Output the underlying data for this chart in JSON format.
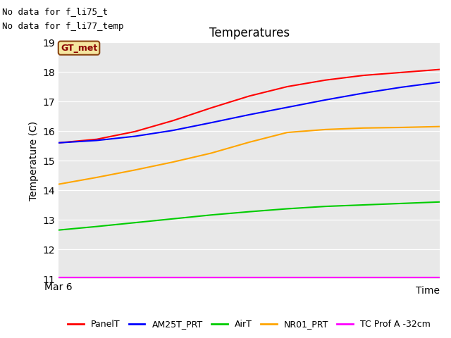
{
  "title": "Temperatures",
  "xlabel": "Time",
  "ylabel": "Temperature (C)",
  "annotation_line1": "No data for f_li75_t",
  "annotation_line2": "No data for f_li77_temp",
  "gt_met_label": "GT_met",
  "x_tick_label": "Mar 6",
  "ylim": [
    11.0,
    19.0
  ],
  "yticks": [
    11.0,
    12.0,
    13.0,
    14.0,
    15.0,
    16.0,
    17.0,
    18.0,
    19.0
  ],
  "axes_bg_color": "#e8e8e8",
  "fig_bg_color": "#ffffff",
  "series": {
    "PanelT": {
      "color": "#ff0000",
      "x": [
        0,
        1,
        2,
        3,
        4,
        5,
        6,
        7,
        8,
        9,
        10
      ],
      "y": [
        15.6,
        15.72,
        15.98,
        16.35,
        16.78,
        17.18,
        17.5,
        17.72,
        17.88,
        17.98,
        18.08
      ]
    },
    "AM25T_PRT": {
      "color": "#0000ff",
      "x": [
        0,
        1,
        2,
        3,
        4,
        5,
        6,
        7,
        8,
        9,
        10
      ],
      "y": [
        15.6,
        15.68,
        15.82,
        16.02,
        16.28,
        16.55,
        16.8,
        17.05,
        17.28,
        17.48,
        17.65
      ]
    },
    "AirT": {
      "color": "#00cc00",
      "x": [
        0,
        1,
        2,
        3,
        4,
        5,
        6,
        7,
        8,
        9,
        10
      ],
      "y": [
        12.65,
        12.77,
        12.9,
        13.03,
        13.16,
        13.27,
        13.37,
        13.45,
        13.5,
        13.55,
        13.6
      ]
    },
    "NR01_PRT": {
      "color": "#ffa500",
      "x": [
        0,
        1,
        2,
        3,
        4,
        5,
        6,
        7,
        8,
        9,
        10
      ],
      "y": [
        14.2,
        14.43,
        14.68,
        14.95,
        15.25,
        15.62,
        15.95,
        16.05,
        16.1,
        16.12,
        16.15
      ]
    },
    "TC Prof A -32cm": {
      "color": "#ff00ff",
      "x": [
        0,
        1,
        2,
        3,
        4,
        5,
        6,
        7,
        8,
        9,
        10
      ],
      "y": [
        11.05,
        11.05,
        11.05,
        11.05,
        11.05,
        11.05,
        11.05,
        11.05,
        11.05,
        11.05,
        11.05
      ]
    }
  },
  "legend_order": [
    "PanelT",
    "AM25T_PRT",
    "AirT",
    "NR01_PRT",
    "TC Prof A -32cm"
  ],
  "gt_met_color": "#8B0000",
  "gt_met_bg": "#f5e6a0",
  "gt_met_edge": "#8B4513"
}
